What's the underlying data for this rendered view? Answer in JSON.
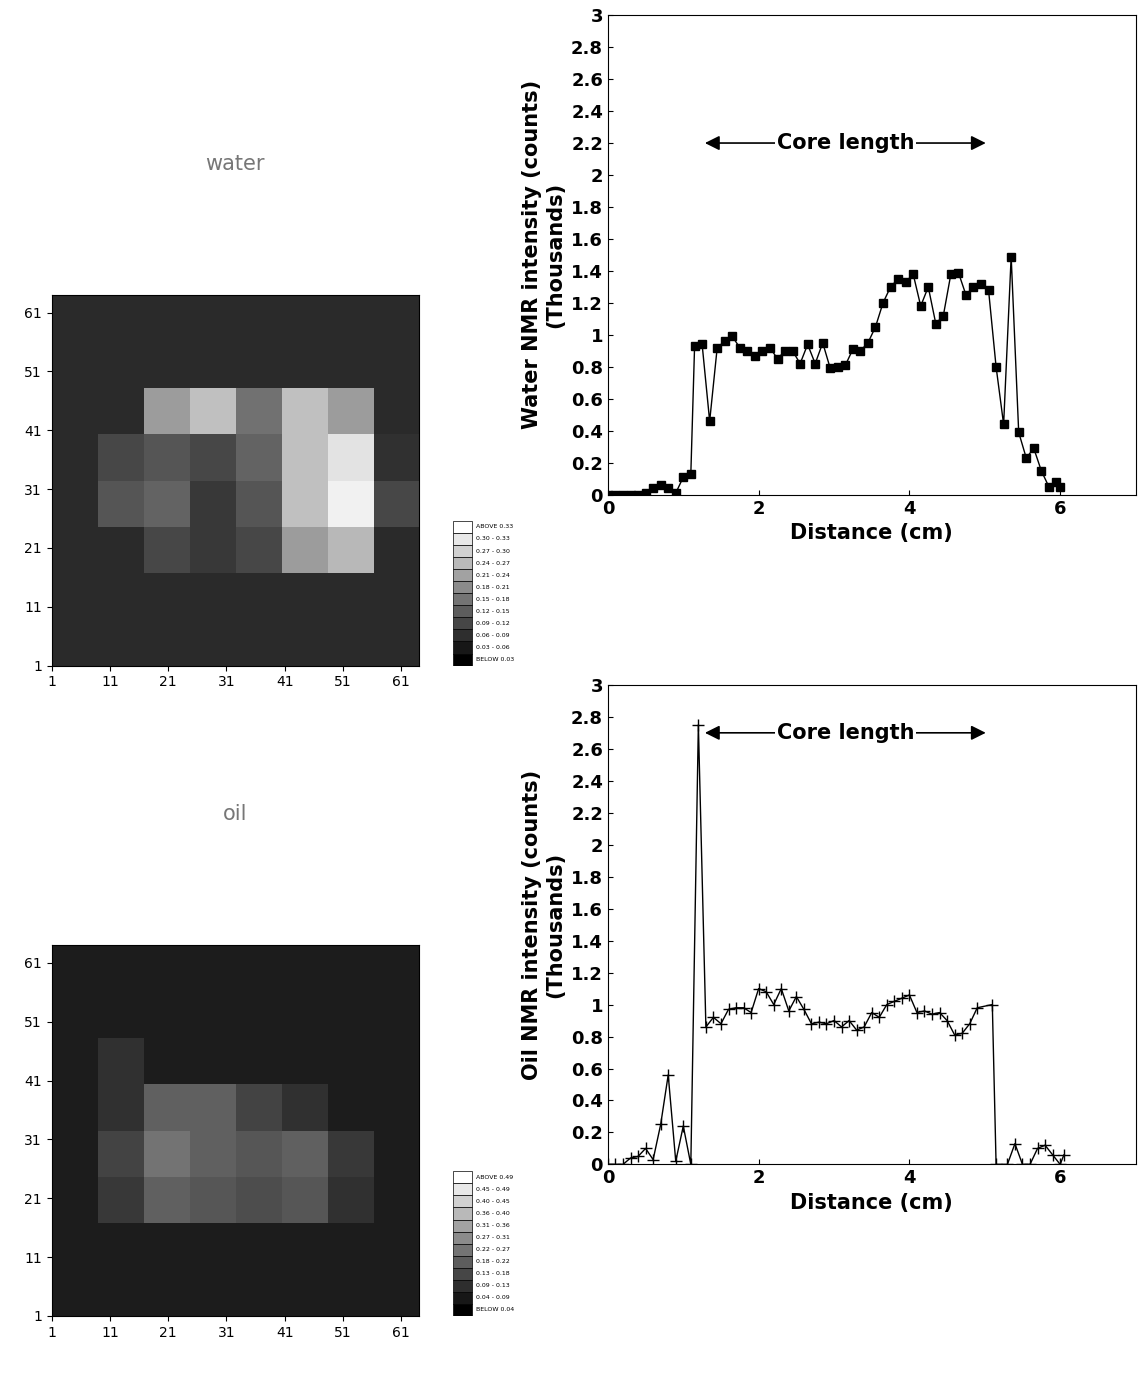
{
  "chart_data": [
    {
      "type": "heatmap",
      "title": "water",
      "xlim": [
        1,
        64
      ],
      "ylim": [
        1,
        64
      ],
      "xticks": [
        1,
        11,
        21,
        31,
        41,
        51,
        61
      ],
      "yticks": [
        1,
        11,
        21,
        31,
        41,
        51,
        61
      ],
      "color_range": [
        0,
        0.36
      ],
      "cells": [
        [
          0.06,
          0.06,
          0.06,
          0.06,
          0.06,
          0.06,
          0.06,
          0.06
        ],
        [
          0.06,
          0.06,
          0.06,
          0.06,
          0.06,
          0.06,
          0.06,
          0.06
        ],
        [
          0.06,
          0.06,
          0.1,
          0.08,
          0.1,
          0.22,
          0.26,
          0.06
        ],
        [
          0.06,
          0.12,
          0.14,
          0.08,
          0.12,
          0.27,
          0.34,
          0.1
        ],
        [
          0.06,
          0.1,
          0.12,
          0.1,
          0.14,
          0.27,
          0.32,
          0.07
        ],
        [
          0.06,
          0.06,
          0.22,
          0.27,
          0.16,
          0.27,
          0.22,
          0.06
        ],
        [
          0.06,
          0.06,
          0.06,
          0.06,
          0.06,
          0.06,
          0.06,
          0.06
        ],
        [
          0.06,
          0.06,
          0.06,
          0.06,
          0.06,
          0.06,
          0.06,
          0.06
        ]
      ],
      "scale_labels": [
        "ABOVE 0.33",
        "0.30 - 0.33",
        "0.27 - 0.30",
        "0.24 - 0.27",
        "0.21 - 0.24",
        "0.18 - 0.21",
        "0.15 - 0.18",
        "0.12 - 0.15",
        "0.09 - 0.12",
        "0.06 - 0.09",
        "0.03 - 0.06",
        "BELOW 0.03"
      ]
    },
    {
      "type": "line",
      "y_label": "Water NMR intensity (counts)\n(Thousands)",
      "x_label": "Distance (cm)",
      "xlim": [
        0,
        7
      ],
      "ylim": [
        0,
        3
      ],
      "xticks": [
        0,
        2,
        4,
        6
      ],
      "yticks": [
        0,
        0.2,
        0.4,
        0.6,
        0.8,
        1,
        1.2,
        1.4,
        1.6,
        1.8,
        2,
        2.2,
        2.4,
        2.6,
        2.8,
        3
      ],
      "color": "#000000",
      "marker": "square",
      "x": [
        0,
        0.1,
        0.2,
        0.3,
        0.4,
        0.5,
        0.6,
        0.7,
        0.8,
        0.9,
        1.0,
        1.1,
        1.15,
        1.25,
        1.35,
        1.45,
        1.55,
        1.65,
        1.75,
        1.85,
        1.95,
        2.05,
        2.15,
        2.25,
        2.35,
        2.45,
        2.55,
        2.65,
        2.75,
        2.85,
        2.95,
        3.05,
        3.15,
        3.25,
        3.35,
        3.45,
        3.55,
        3.65,
        3.75,
        3.85,
        3.95,
        4.05,
        4.15,
        4.25,
        4.35,
        4.45,
        4.55,
        4.65,
        4.75,
        4.85,
        4.95,
        5.05,
        5.15,
        5.25,
        5.35,
        5.45,
        5.55,
        5.65,
        5.75,
        5.85,
        5.95,
        6.0
      ],
      "values": [
        0,
        0,
        0,
        0,
        0,
        0.01,
        0.04,
        0.06,
        0.04,
        0.01,
        0.11,
        0.13,
        0.93,
        0.94,
        0.46,
        0.92,
        0.96,
        0.99,
        0.92,
        0.9,
        0.87,
        0.9,
        0.92,
        0.85,
        0.9,
        0.9,
        0.82,
        0.94,
        0.82,
        0.95,
        0.79,
        0.8,
        0.81,
        0.91,
        0.9,
        0.95,
        1.05,
        1.2,
        1.3,
        1.35,
        1.33,
        1.38,
        1.18,
        1.3,
        1.07,
        1.12,
        1.38,
        1.39,
        1.25,
        1.3,
        1.32,
        1.28,
        0.8,
        0.44,
        1.49,
        0.39,
        0.23,
        0.29,
        0.15,
        0.05,
        0.08,
        0.05
      ],
      "annotation": {
        "text": "Core length",
        "x": [
          1.25,
          5.05
        ],
        "y": 2.2
      }
    },
    {
      "type": "heatmap",
      "title": "oil",
      "xlim": [
        1,
        64
      ],
      "ylim": [
        1,
        64
      ],
      "xticks": [
        1,
        11,
        21,
        31,
        41,
        51,
        61
      ],
      "yticks": [
        1,
        11,
        21,
        31,
        41,
        51,
        61
      ],
      "color_range": [
        0,
        0.53
      ],
      "cells": [
        [
          0.06,
          0.06,
          0.06,
          0.06,
          0.06,
          0.06,
          0.06,
          0.06
        ],
        [
          0.06,
          0.06,
          0.06,
          0.06,
          0.06,
          0.06,
          0.06,
          0.06
        ],
        [
          0.06,
          0.12,
          0.2,
          0.18,
          0.16,
          0.18,
          0.1,
          0.06
        ],
        [
          0.06,
          0.14,
          0.24,
          0.2,
          0.18,
          0.2,
          0.12,
          0.06
        ],
        [
          0.06,
          0.1,
          0.2,
          0.2,
          0.14,
          0.1,
          0.06,
          0.06
        ],
        [
          0.06,
          0.1,
          0.06,
          0.06,
          0.06,
          0.06,
          0.06,
          0.06
        ],
        [
          0.06,
          0.06,
          0.06,
          0.06,
          0.06,
          0.06,
          0.06,
          0.06
        ],
        [
          0.06,
          0.06,
          0.06,
          0.06,
          0.06,
          0.06,
          0.06,
          0.06
        ]
      ],
      "scale_labels": [
        "ABOVE 0.49",
        "0.45 - 0.49",
        "0.40 - 0.45",
        "0.36 - 0.40",
        "0.31 - 0.36",
        "0.27 - 0.31",
        "0.22 - 0.27",
        "0.18 - 0.22",
        "0.13 - 0.18",
        "0.09 - 0.13",
        "0.04 - 0.09",
        "BELOW 0.04"
      ]
    },
    {
      "type": "line",
      "y_label": "Oil NMR intensity (counts)\n(Thousands)",
      "x_label": "Distance (cm)",
      "xlim": [
        0,
        7
      ],
      "ylim": [
        0,
        3
      ],
      "xticks": [
        0,
        2,
        4,
        6
      ],
      "yticks": [
        0,
        0.2,
        0.4,
        0.6,
        0.8,
        1,
        1.2,
        1.4,
        1.6,
        1.8,
        2,
        2.2,
        2.4,
        2.6,
        2.8,
        3
      ],
      "color": "#000000",
      "marker": "plus",
      "x": [
        0,
        0.1,
        0.2,
        0.3,
        0.4,
        0.5,
        0.6,
        0.7,
        0.8,
        0.9,
        1.0,
        1.1,
        1.2,
        1.3,
        1.4,
        1.5,
        1.6,
        1.7,
        1.8,
        1.9,
        2.0,
        2.1,
        2.2,
        2.3,
        2.4,
        2.5,
        2.6,
        2.7,
        2.8,
        2.9,
        3.0,
        3.1,
        3.2,
        3.3,
        3.4,
        3.5,
        3.6,
        3.7,
        3.8,
        3.9,
        4.0,
        4.1,
        4.2,
        4.3,
        4.4,
        4.5,
        4.6,
        4.7,
        4.8,
        4.9,
        5.1,
        5.15,
        5.3,
        5.4,
        5.5,
        5.6,
        5.7,
        5.8,
        5.9,
        6.0,
        6.05
      ],
      "values": [
        0,
        0,
        0,
        0.04,
        0.05,
        0.1,
        0.03,
        0.25,
        0.56,
        0.02,
        0.24,
        0,
        2.75,
        0.86,
        0.92,
        0.88,
        0.97,
        0.98,
        0.98,
        0.95,
        1.1,
        1.08,
        1.0,
        1.1,
        0.96,
        1.05,
        0.97,
        0.88,
        0.89,
        0.88,
        0.9,
        0.86,
        0.9,
        0.84,
        0.86,
        0.95,
        0.92,
        1.0,
        1.02,
        1.04,
        1.06,
        0.95,
        0.96,
        0.94,
        0.95,
        0.9,
        0.81,
        0.82,
        0.88,
        0.98,
        1.0,
        0,
        0,
        0.13,
        0,
        0,
        0.1,
        0.12,
        0.06,
        0,
        0.06
      ],
      "annotation": {
        "text": "Core length",
        "x": [
          1.25,
          5.05
        ],
        "y": 2.7
      }
    }
  ]
}
